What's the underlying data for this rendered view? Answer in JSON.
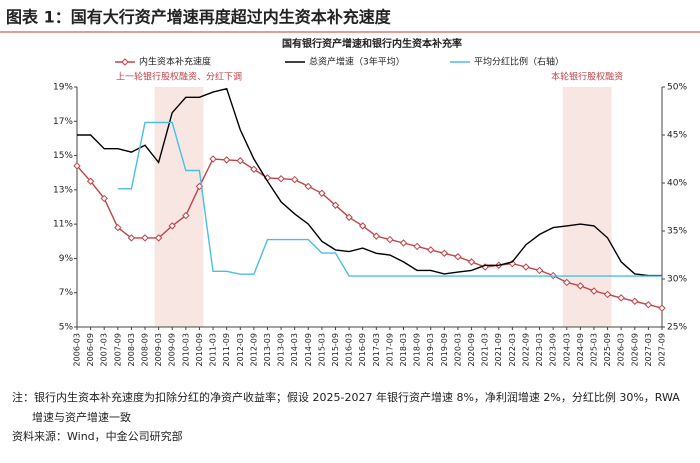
{
  "header": {
    "title": "图表 1：国有大行资产增速再度超过内生资本补充速度"
  },
  "chart_data": {
    "type": "line",
    "title": "国有银行资产增速和银行内生资本补充率",
    "grid": false,
    "categories": [
      "2006-03",
      "2006-09",
      "2007-03",
      "2007-09",
      "2008-03",
      "2008-09",
      "2009-03",
      "2009-09",
      "2010-03",
      "2010-09",
      "2011-03",
      "2011-09",
      "2012-03",
      "2012-09",
      "2013-03",
      "2013-09",
      "2014-03",
      "2014-09",
      "2015-03",
      "2015-09",
      "2016-03",
      "2016-09",
      "2017-03",
      "2017-09",
      "2018-03",
      "2018-09",
      "2019-03",
      "2019-09",
      "2020-03",
      "2020-09",
      "2021-03",
      "2021-09",
      "2022-03",
      "2022-09",
      "2023-03",
      "2023-09",
      "2024-03",
      "2024-09",
      "2025-03",
      "2025-09",
      "2026-03",
      "2026-09",
      "2027-03",
      "2027-09"
    ],
    "ylim": [
      5,
      19
    ],
    "yticks": [
      {
        "value": 5,
        "label": "5%"
      },
      {
        "value": 7,
        "label": "7%"
      },
      {
        "value": 9,
        "label": "9%"
      },
      {
        "value": 11,
        "label": "11%"
      },
      {
        "value": 13,
        "label": "13%"
      },
      {
        "value": 15,
        "label": "15%"
      },
      {
        "value": 17,
        "label": "17%"
      },
      {
        "value": 19,
        "label": "19%"
      }
    ],
    "y2lim": [
      25,
      50
    ],
    "y2ticks": [
      {
        "value": 25,
        "label": "25%"
      },
      {
        "value": 30,
        "label": "30%"
      },
      {
        "value": 35,
        "label": "35%"
      },
      {
        "value": 40,
        "label": "40%"
      },
      {
        "value": 45,
        "label": "45%"
      },
      {
        "value": 50,
        "label": "50%"
      }
    ],
    "series": [
      {
        "name": "内生资本补充速度",
        "color": "#c0444a",
        "marker": "diamond",
        "values": [
          14.4,
          13.5,
          12.5,
          10.8,
          10.2,
          10.2,
          10.2,
          10.9,
          11.5,
          13.2,
          14.8,
          14.75,
          14.7,
          14.2,
          13.7,
          13.65,
          13.6,
          13.2,
          12.8,
          12.1,
          11.4,
          10.9,
          10.3,
          10.1,
          9.9,
          9.7,
          9.5,
          9.3,
          9.1,
          8.8,
          8.5,
          8.6,
          8.7,
          8.5,
          8.3,
          8.0,
          7.6,
          7.4,
          7.1,
          6.9,
          6.7,
          6.5,
          6.3,
          6.1
        ]
      },
      {
        "name": "总资产增速（3年平均）",
        "color": "#000000",
        "values": [
          16.2,
          16.2,
          15.4,
          15.4,
          15.2,
          15.6,
          14.6,
          17.5,
          18.4,
          18.4,
          18.7,
          18.9,
          16.5,
          14.8,
          13.5,
          12.3,
          11.6,
          11.0,
          10.0,
          9.5,
          9.4,
          9.6,
          9.3,
          9.2,
          8.8,
          8.3,
          8.3,
          8.1,
          8.2,
          8.3,
          8.6,
          8.6,
          8.8,
          9.8,
          10.4,
          10.8,
          10.9,
          11.0,
          10.9,
          10.2,
          8.8,
          8.1,
          8.0,
          8.0
        ]
      },
      {
        "name": "平均分红比例（右轴）",
        "color": "#4bbfe0",
        "axis": "y2",
        "values": [
          null,
          null,
          null,
          39.4,
          39.4,
          46.3,
          46.3,
          46.3,
          41.3,
          41.3,
          30.8,
          30.8,
          30.5,
          30.5,
          34.1,
          34.1,
          34.1,
          34.1,
          32.7,
          32.7,
          30.3,
          30.3,
          30.3,
          30.3,
          30.3,
          30.3,
          30.3,
          30.3,
          30.3,
          30.3,
          30.3,
          30.3,
          30.3,
          30.3,
          30.3,
          30.3,
          30.3,
          30.3,
          30.3,
          30.3,
          30.3,
          30.3,
          30.3,
          30.3
        ]
      }
    ],
    "shaded_ranges": [
      {
        "from": "2009-03",
        "to": "2010-09",
        "label": "上一轮银行股权融资、分红下调"
      },
      {
        "from": "2024-03",
        "to": "2025-09",
        "label": "本轮银行股权融资"
      }
    ]
  },
  "notes": [
    "注：银行内生资本补充速度为扣除分红的净资产收益率；假设 2025-2027 年银行资产增速 8%，净利润增速 2%，分红比例 30%，RWA",
    "增速与资产增速一致",
    "资料来源：Wind，中金公司研究部"
  ]
}
